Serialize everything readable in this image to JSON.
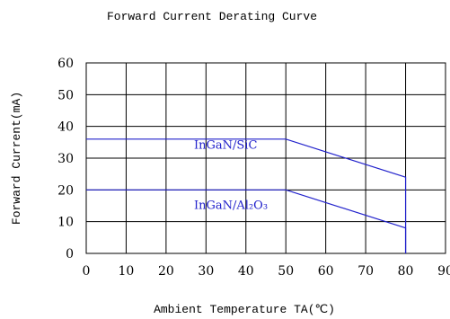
{
  "chart_data": {
    "type": "line",
    "title": "Forward Current Derating Curve",
    "xlabel": "Ambient Temperature TA(℃)",
    "ylabel": "Forward Current(mA)",
    "xlim": [
      0,
      90
    ],
    "ylim": [
      0,
      60
    ],
    "xticks": [
      0,
      10,
      20,
      30,
      40,
      50,
      60,
      70,
      80,
      90
    ],
    "yticks": [
      0,
      10,
      20,
      30,
      40,
      50,
      60
    ],
    "grid": true,
    "legend": "none",
    "line_color": "#2222cc",
    "grid_color": "#000000",
    "series": [
      {
        "name": "InGaN/SiC",
        "x": [
          0,
          50,
          80,
          80
        ],
        "y": [
          36,
          36,
          24,
          0
        ]
      },
      {
        "name": "InGaN/Al₂O₃",
        "x": [
          0,
          50,
          80,
          80
        ],
        "y": [
          20,
          20,
          8,
          0
        ]
      }
    ]
  }
}
